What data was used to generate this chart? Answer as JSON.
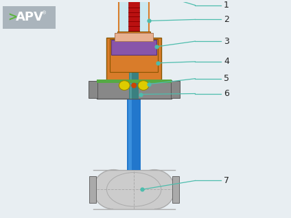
{
  "bg_color": "#e8eef2",
  "apv_bg": "#aab4bc",
  "apv_arrow_color": "#5ab53c",
  "label_line_color": "#4dbdad",
  "label_text_color": "#222222",
  "label_fontsize": 9,
  "valve_colors": {
    "red_cap": "#cc2222",
    "orange_body": "#d97c2a",
    "blue_stem": "#2277cc",
    "teal_stem": "#3a8080",
    "purple_disc": "#8855aa",
    "yellow_nut": "#ddcc00",
    "green_seal": "#55aa44",
    "gray_body": "#888888",
    "light_gray": "#cccccc",
    "mid_gray": "#aaaaaa",
    "peach": "#e8b090",
    "cyan_top": "#44ccdd",
    "dark_border": "#555555"
  }
}
